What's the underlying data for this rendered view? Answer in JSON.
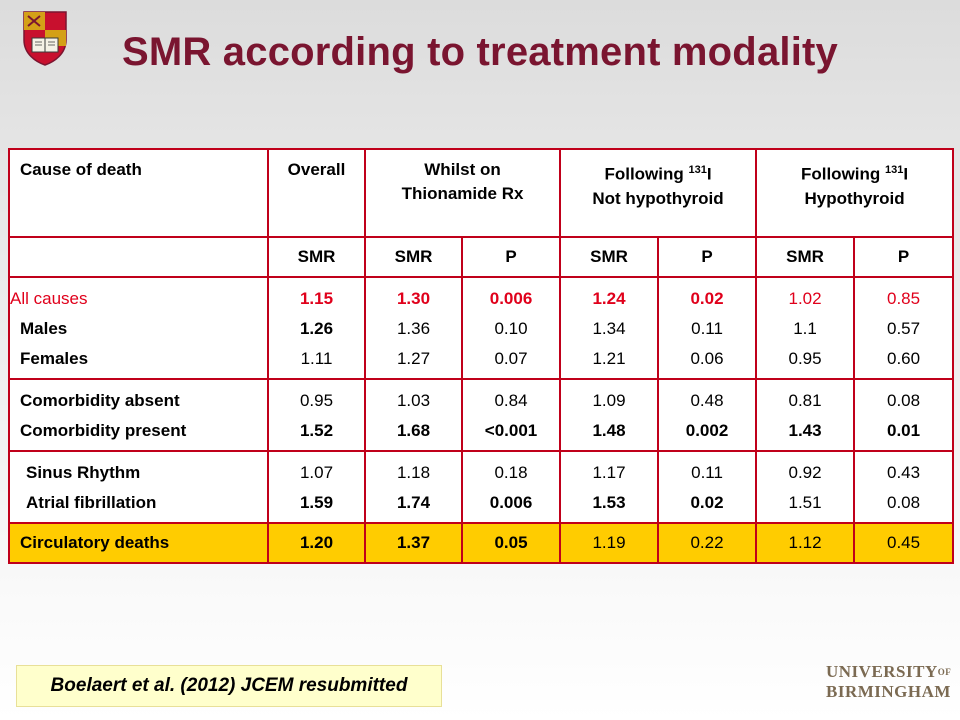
{
  "slide": {
    "title": "SMR according to treatment modality",
    "citation": "Boelaert et al. (2012) JCEM resubmitted",
    "logo_line1": "UNIVERSITY",
    "logo_of": "OF",
    "logo_line2": "BIRMINGHAM",
    "colors": {
      "title": "#7a1530",
      "border": "#c0001a",
      "highlight": "#ffcc00",
      "emphasis": "#e0001b"
    }
  },
  "table": {
    "headers": {
      "cause": "Cause of death",
      "overall": "Overall",
      "whilst_l1": "Whilst on",
      "whilst_l2": "Thionamide  Rx",
      "fnh_l1": "Following ",
      "fnh_sup": "131",
      "fnh_iso": "I",
      "fnh_l2": "Not hypothyroid",
      "fh_l1": "Following ",
      "fh_sup": "131",
      "fh_iso": "I",
      "fh_l2": "Hypothyroid"
    },
    "subheaders": [
      "SMR",
      "SMR",
      "P",
      "SMR",
      "P",
      "SMR",
      "P"
    ],
    "group1": [
      {
        "label": "All causes",
        "values": [
          "1.15",
          "1.30",
          "0.006",
          "1.24",
          "0.02",
          "1.02",
          "0.85"
        ]
      },
      {
        "label": "Males",
        "values": [
          "1.26",
          "1.36",
          "0.10",
          "1.34",
          "0.11",
          "1.1",
          "0.57"
        ]
      },
      {
        "label": "Females",
        "values": [
          "1.11",
          "1.27",
          "0.07",
          "1.21",
          "0.06",
          "0.95",
          "0.60"
        ]
      }
    ],
    "group2": [
      {
        "label": "Comorbidity  absent",
        "values": [
          "0.95",
          "1.03",
          "0.84",
          "1.09",
          "0.48",
          "0.81",
          "0.08"
        ]
      },
      {
        "label": "Comorbidity  present",
        "values": [
          "1.52",
          "1.68",
          "<0.001",
          "1.48",
          "0.002",
          "1.43",
          "0.01"
        ]
      }
    ],
    "group3": [
      {
        "label": "Sinus Rhythm",
        "values": [
          "1.07",
          "1.18",
          "0.18",
          "1.17",
          "0.11",
          "0.92",
          "0.43"
        ]
      },
      {
        "label": "Atrial fibrillation",
        "values": [
          "1.59",
          "1.74",
          "0.006",
          "1.53",
          "0.02",
          "1.51",
          "0.08"
        ]
      }
    ],
    "circulatory": {
      "label": "Circulatory deaths",
      "values": [
        "1.20",
        "1.37",
        "0.05",
        "1.19",
        "0.22",
        "1.12",
        "0.45"
      ]
    }
  }
}
